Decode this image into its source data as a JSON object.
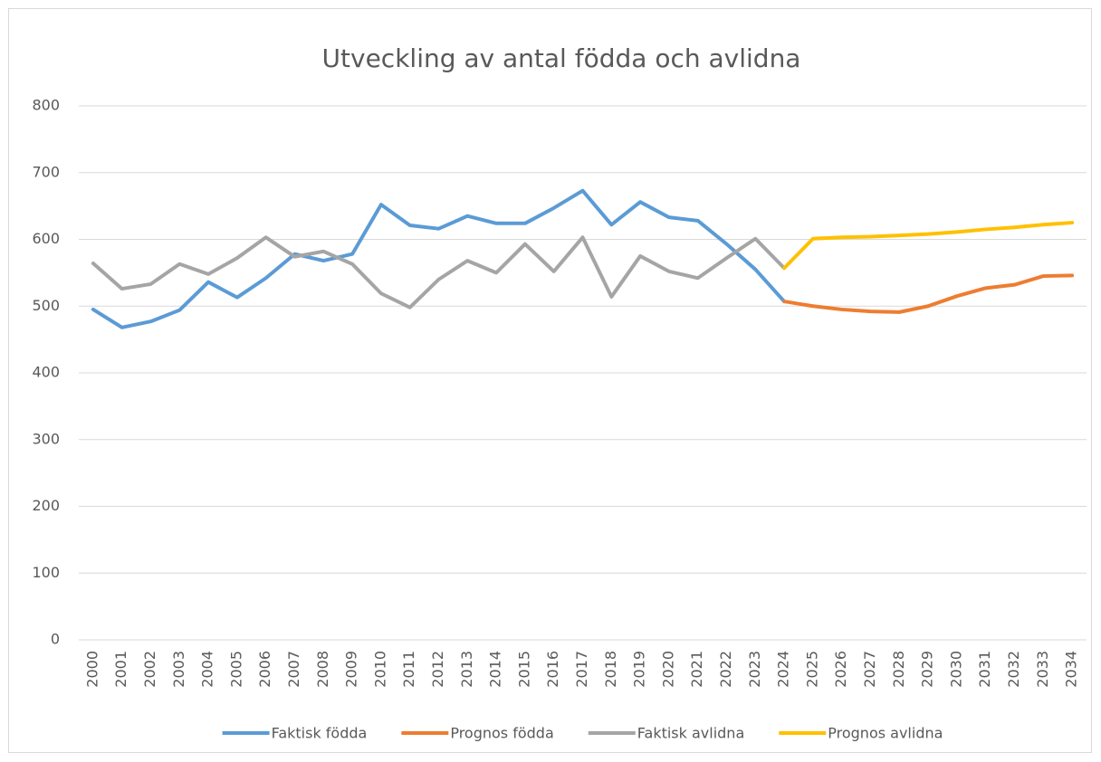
{
  "chart_data": {
    "type": "line",
    "title": "Utveckling av antal födda och avlidna",
    "categories": [
      "2000",
      "2001",
      "2002",
      "2003",
      "2004",
      "2005",
      "2006",
      "2007",
      "2008",
      "2009",
      "2010",
      "2011",
      "2012",
      "2013",
      "2014",
      "2015",
      "2016",
      "2017",
      "2018",
      "2019",
      "2020",
      "2021",
      "2022",
      "2023",
      "2024",
      "2025",
      "2026",
      "2027",
      "2028",
      "2029",
      "2030",
      "2031",
      "2032",
      "2033",
      "2034"
    ],
    "series": [
      {
        "name": "Faktisk födda",
        "color": "#5b9bd5",
        "values": [
          495,
          468,
          477,
          494,
          536,
          513,
          542,
          578,
          568,
          578,
          652,
          621,
          616,
          635,
          624,
          624,
          647,
          673,
          622,
          656,
          633,
          628,
          593,
          555,
          507,
          null,
          null,
          null,
          null,
          null,
          null,
          null,
          null,
          null,
          null
        ]
      },
      {
        "name": "Prognos födda",
        "color": "#ed7d31",
        "values": [
          null,
          null,
          null,
          null,
          null,
          null,
          null,
          null,
          null,
          null,
          null,
          null,
          null,
          null,
          null,
          null,
          null,
          null,
          null,
          null,
          null,
          null,
          null,
          null,
          507,
          500,
          495,
          492,
          491,
          500,
          515,
          527,
          532,
          545,
          546
        ]
      },
      {
        "name": "Faktisk avlidna",
        "color": "#a5a5a5",
        "values": [
          564,
          526,
          533,
          563,
          548,
          572,
          603,
          574,
          582,
          563,
          519,
          498,
          540,
          568,
          550,
          593,
          552,
          603,
          514,
          575,
          552,
          542,
          572,
          601,
          557,
          null,
          null,
          null,
          null,
          null,
          null,
          null,
          null,
          null,
          null
        ]
      },
      {
        "name": "Prognos avlidna",
        "color": "#ffc000",
        "values": [
          null,
          null,
          null,
          null,
          null,
          null,
          null,
          null,
          null,
          null,
          null,
          null,
          null,
          null,
          null,
          null,
          null,
          null,
          null,
          null,
          null,
          null,
          null,
          null,
          557,
          601,
          603,
          604,
          606,
          608,
          611,
          615,
          618,
          622,
          625
        ]
      }
    ],
    "ylim": [
      0,
      800
    ],
    "yticks": [
      0,
      100,
      200,
      300,
      400,
      500,
      600,
      700,
      800
    ],
    "grid": true,
    "legend": "bottom"
  }
}
